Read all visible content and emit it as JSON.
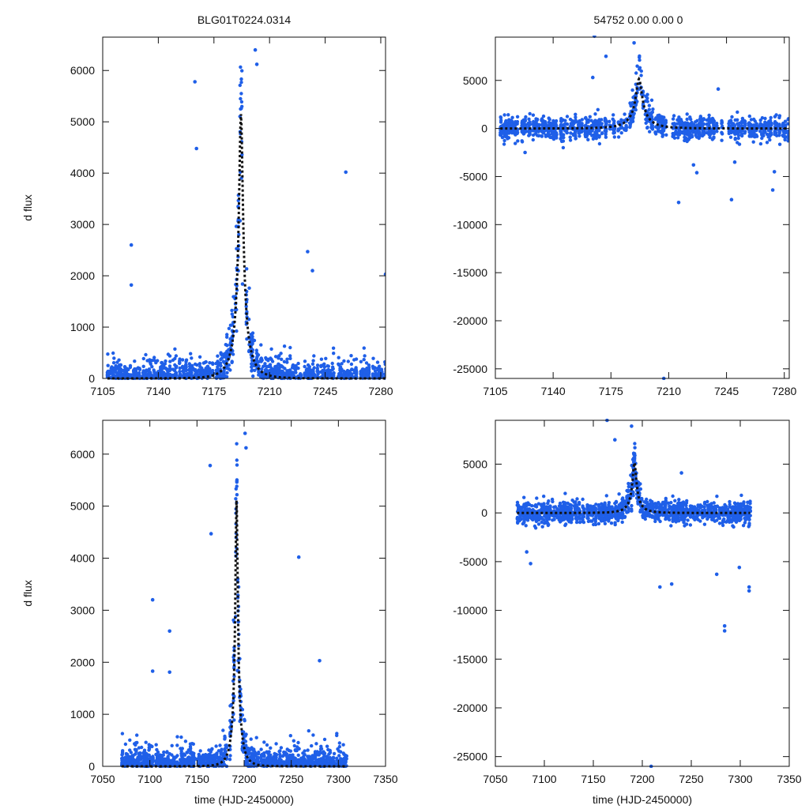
{
  "figure": {
    "title_left": "BLG01T0224.0314",
    "title_right": "54752  0.00  0.00  0"
  },
  "style": {
    "point_color": "#1f5fe8",
    "model_color": "#111111",
    "axis_color": "#111111"
  },
  "chart_data": [
    {
      "id": "top-left",
      "type": "scatter",
      "title": "BLG01T0224.0314",
      "xlabel": "",
      "ylabel": "d flux",
      "xlim": [
        7105,
        7283
      ],
      "ylim": [
        0,
        6650
      ],
      "xticks": [
        7105,
        7140,
        7175,
        7210,
        7245,
        7280
      ],
      "yticks": [
        0,
        1000,
        2000,
        3000,
        4000,
        5000,
        6000
      ],
      "model": {
        "t0": 7192,
        "tE": 10,
        "fmax": 5150,
        "fbase": 0
      },
      "data_range": [
        7108,
        7283
      ],
      "outliers": [
        [
          7163,
          5780
        ],
        [
          7164,
          4480
        ],
        [
          7123,
          2600
        ],
        [
          7123,
          1820
        ],
        [
          7201,
          6400
        ],
        [
          7202,
          6120
        ],
        [
          7258,
          4020
        ],
        [
          7283,
          2030
        ],
        [
          7193,
          1840
        ],
        [
          7234,
          2470
        ],
        [
          7237,
          2100
        ]
      ],
      "n_points": 1400,
      "seed": 11
    },
    {
      "id": "top-right",
      "type": "scatter",
      "title": "54752  0.00  0.00  0",
      "xlabel": "",
      "ylabel": "",
      "xlim": [
        7105,
        7283
      ],
      "ylim": [
        -26000,
        9500
      ],
      "xticks": [
        7105,
        7140,
        7175,
        7210,
        7245,
        7280
      ],
      "yticks": [
        -25000,
        -20000,
        -15000,
        -10000,
        -5000,
        0,
        5000
      ],
      "model": {
        "t0": 7192,
        "tE": 15,
        "fmax": 5150,
        "fbase": 0
      },
      "data_range": [
        7108,
        7283
      ],
      "outliers": [
        [
          7165,
          9600
        ],
        [
          7189,
          8900
        ],
        [
          7172,
          7500
        ],
        [
          7240,
          4100
        ],
        [
          7164,
          5300
        ],
        [
          7225,
          -3800
        ],
        [
          7227,
          -4600
        ],
        [
          7216,
          -7700
        ],
        [
          7248,
          -7400
        ],
        [
          7273,
          -6400
        ],
        [
          7274,
          -4500
        ],
        [
          7207,
          -26000
        ],
        [
          7123,
          -2500
        ],
        [
          7250,
          -3500
        ]
      ],
      "n_points": 1400,
      "seed": 23
    },
    {
      "id": "bottom-left",
      "type": "scatter",
      "title": "",
      "xlabel": "time (HJD-2450000)",
      "ylabel": "d flux",
      "xlim": [
        7050,
        7350
      ],
      "ylim": [
        0,
        6650
      ],
      "xticks": [
        7050,
        7100,
        7150,
        7200,
        7250,
        7300,
        7350
      ],
      "yticks": [
        0,
        1000,
        2000,
        3000,
        4000,
        5000,
        6000
      ],
      "model": {
        "t0": 7192,
        "tE": 10,
        "fmax": 5150,
        "fbase": 0
      },
      "data_range": [
        7070,
        7308
      ],
      "outliers": [
        [
          7164,
          5780
        ],
        [
          7165,
          4470
        ],
        [
          7103,
          3200
        ],
        [
          7121,
          2600
        ],
        [
          7103,
          1830
        ],
        [
          7121,
          1810
        ],
        [
          7201,
          6400
        ],
        [
          7202,
          6120
        ],
        [
          7258,
          4020
        ],
        [
          7280,
          2030
        ],
        [
          7193,
          1840
        ]
      ],
      "n_points": 1500,
      "seed": 37
    },
    {
      "id": "bottom-right",
      "type": "scatter",
      "title": "",
      "xlabel": "time (HJD-2450000)",
      "ylabel": "",
      "xlim": [
        7050,
        7350
      ],
      "ylim": [
        -26000,
        9500
      ],
      "xticks": [
        7050,
        7100,
        7150,
        7200,
        7250,
        7300,
        7350
      ],
      "yticks": [
        -25000,
        -20000,
        -15000,
        -10000,
        -5000,
        0,
        5000
      ],
      "model": {
        "t0": 7192,
        "tE": 15,
        "fmax": 5150,
        "fbase": 0
      },
      "data_range": [
        7072,
        7310
      ],
      "outliers": [
        [
          7164,
          9500
        ],
        [
          7189,
          8900
        ],
        [
          7172,
          7500
        ],
        [
          7240,
          4100
        ],
        [
          7284,
          -11600
        ],
        [
          7284,
          -12100
        ],
        [
          7309,
          -7600
        ],
        [
          7309,
          -8000
        ],
        [
          7209,
          -26000
        ],
        [
          7218,
          -7600
        ],
        [
          7230,
          -7300
        ],
        [
          7082,
          -4000
        ],
        [
          7086,
          -5200
        ],
        [
          7276,
          -6300
        ],
        [
          7299,
          -5600
        ]
      ],
      "n_points": 1500,
      "seed": 51
    }
  ]
}
